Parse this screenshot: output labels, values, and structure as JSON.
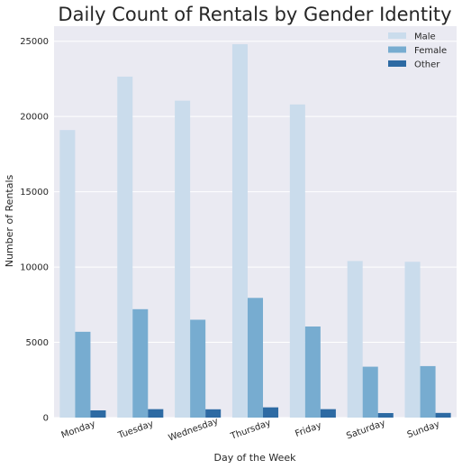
{
  "chart_data": {
    "type": "bar",
    "title": "Daily Count of Rentals by Gender Identity",
    "xlabel": "Day of the Week",
    "ylabel": "Number of Rentals",
    "categories": [
      "Monday",
      "Tuesday",
      "Wednesday",
      "Thursday",
      "Friday",
      "Saturday",
      "Sunday"
    ],
    "series": [
      {
        "name": "Male",
        "color": "#cadcec",
        "values": [
          19100,
          22650,
          21050,
          24800,
          20800,
          10400,
          10350
        ]
      },
      {
        "name": "Female",
        "color": "#77acd0",
        "values": [
          5700,
          7200,
          6500,
          7950,
          6050,
          3380,
          3420
        ]
      },
      {
        "name": "Other",
        "color": "#2d6aa3",
        "values": [
          480,
          560,
          550,
          680,
          560,
          300,
          310
        ]
      }
    ],
    "ylim": [
      0,
      26000
    ],
    "yticks": [
      0,
      5000,
      10000,
      15000,
      20000,
      25000
    ],
    "grid": true,
    "legend_position": "top-right",
    "background_color": "#eaeaf2",
    "grid_color": "#ffffff"
  }
}
